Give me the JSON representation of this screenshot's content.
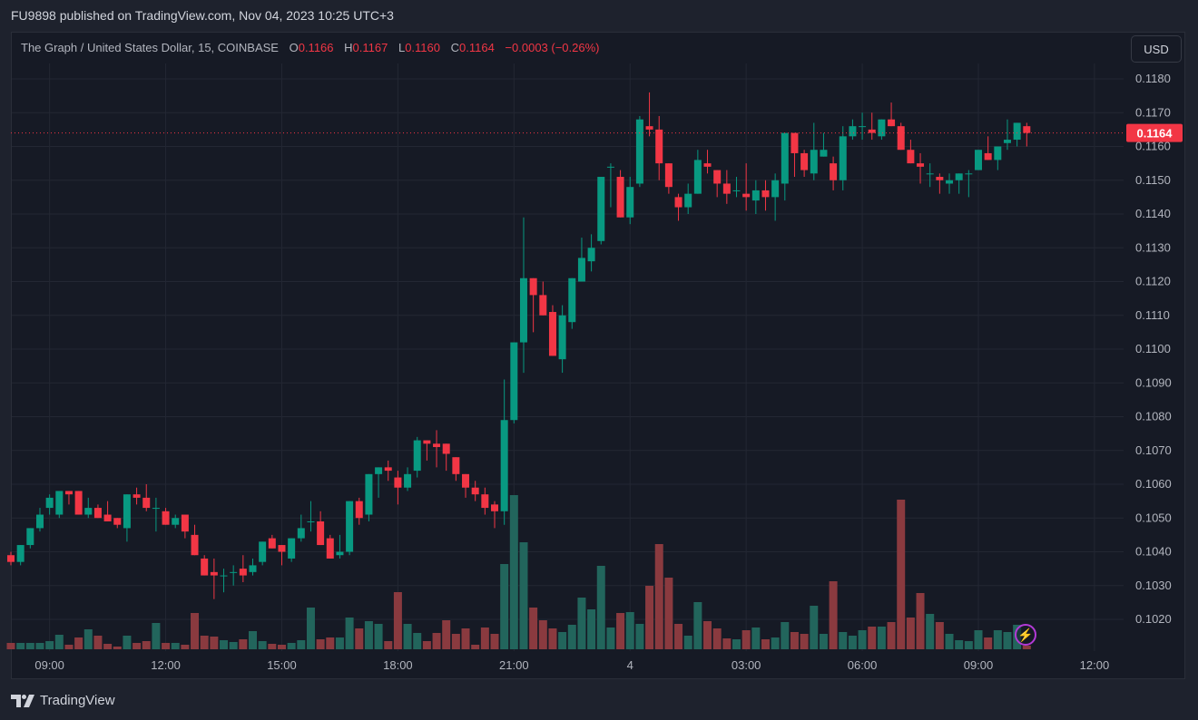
{
  "header": {
    "published": "FU9898 published on TradingView.com, Nov 04, 2023 10:25 UTC+3"
  },
  "legend": {
    "title": "The Graph / United States Dollar, 15, COINBASE",
    "o_label": "O",
    "o": "0.1166",
    "h_label": "H",
    "h": "0.1167",
    "l_label": "L",
    "l": "0.1160",
    "c_label": "C",
    "c": "0.1164",
    "change": "−0.0003 (−0.26%)"
  },
  "currency_button": "USD",
  "current_price_label": "0.1164",
  "branding": {
    "logo_text": "TradingView"
  },
  "icons": {
    "replay": "lightning-icon",
    "logo": "tradingview-logo-icon"
  },
  "colors": {
    "up": "#089981",
    "down": "#f23645",
    "vol_up": "#22655c",
    "vol_down": "#8a3a3f",
    "grid": "#232733",
    "axis_text": "#b2b5be"
  },
  "chart_data": {
    "type": "candlestick",
    "symbol": "GRT/USD",
    "interval_minutes": 15,
    "first_bar_time": "08:00",
    "ylim": [
      0.10135,
      0.11875
    ],
    "current_price": 0.1164,
    "price_ticks": [
      "0.1020",
      "0.1030",
      "0.1040",
      "0.1050",
      "0.1060",
      "0.1070",
      "0.1080",
      "0.1090",
      "0.1100",
      "0.1110",
      "0.1120",
      "0.1130",
      "0.1140",
      "0.1150",
      "0.1160",
      "0.1170",
      "0.1180"
    ],
    "time_ticks": [
      {
        "index": 4,
        "label": "09:00"
      },
      {
        "index": 16,
        "label": "12:00"
      },
      {
        "index": 28,
        "label": "15:00"
      },
      {
        "index": 40,
        "label": "18:00"
      },
      {
        "index": 52,
        "label": "21:00"
      },
      {
        "index": 64,
        "label": "4"
      },
      {
        "index": 76,
        "label": "03:00"
      },
      {
        "index": 88,
        "label": "06:00"
      },
      {
        "index": 100,
        "label": "09:00"
      },
      {
        "index": 112,
        "label": "12:00"
      }
    ],
    "ohlc": [
      [
        0.1039,
        0.104,
        0.1036,
        0.1037
      ],
      [
        0.1037,
        0.1042,
        0.1036,
        0.1042
      ],
      [
        0.1042,
        0.1047,
        0.1041,
        0.1047
      ],
      [
        0.1047,
        0.1053,
        0.1046,
        0.1051
      ],
      [
        0.1053,
        0.1057,
        0.1051,
        0.1056
      ],
      [
        0.1051,
        0.1058,
        0.105,
        0.1058
      ],
      [
        0.1058,
        0.1058,
        0.1054,
        0.1057
      ],
      [
        0.1058,
        0.1058,
        0.1051,
        0.1051
      ],
      [
        0.1051,
        0.1056,
        0.105,
        0.1053
      ],
      [
        0.1053,
        0.1054,
        0.105,
        0.105
      ],
      [
        0.1051,
        0.1055,
        0.1049,
        0.1049
      ],
      [
        0.105,
        0.105,
        0.1047,
        0.1048
      ],
      [
        0.1047,
        0.1057,
        0.1043,
        0.1057
      ],
      [
        0.1057,
        0.1059,
        0.1054,
        0.1056
      ],
      [
        0.1056,
        0.106,
        0.1052,
        0.1053
      ],
      [
        0.1053,
        0.1056,
        0.1046,
        0.1053
      ],
      [
        0.1052,
        0.1053,
        0.1048,
        0.1048
      ],
      [
        0.1048,
        0.1051,
        0.1047,
        0.105
      ],
      [
        0.1051,
        0.1051,
        0.1044,
        0.1046
      ],
      [
        0.1045,
        0.1048,
        0.1039,
        0.1039
      ],
      [
        0.1038,
        0.1039,
        0.1033,
        0.1033
      ],
      [
        0.1034,
        0.1038,
        0.1026,
        0.1033
      ],
      [
        0.1033,
        0.1035,
        0.1028,
        0.1033
      ],
      [
        0.1034,
        0.1036,
        0.103,
        0.1034
      ],
      [
        0.1035,
        0.1039,
        0.1031,
        0.1033
      ],
      [
        0.1034,
        0.1038,
        0.1033,
        0.1036
      ],
      [
        0.1037,
        0.1043,
        0.1036,
        0.1043
      ],
      [
        0.1044,
        0.1045,
        0.1041,
        0.1041
      ],
      [
        0.1042,
        0.1042,
        0.1036,
        0.104
      ],
      [
        0.1038,
        0.1044,
        0.1037,
        0.1044
      ],
      [
        0.1044,
        0.1051,
        0.1043,
        0.1047
      ],
      [
        0.1049,
        0.1055,
        0.1046,
        0.1049
      ],
      [
        0.1049,
        0.1052,
        0.1042,
        0.1042
      ],
      [
        0.1044,
        0.1045,
        0.1038,
        0.1038
      ],
      [
        0.1039,
        0.1045,
        0.1038,
        0.104
      ],
      [
        0.104,
        0.1055,
        0.1039,
        0.1055
      ],
      [
        0.1055,
        0.1056,
        0.1048,
        0.105
      ],
      [
        0.1051,
        0.1063,
        0.1049,
        0.1063
      ],
      [
        0.1063,
        0.1065,
        0.1056,
        0.1065
      ],
      [
        0.1065,
        0.1067,
        0.1061,
        0.1064
      ],
      [
        0.1062,
        0.1064,
        0.1054,
        0.1059
      ],
      [
        0.1059,
        0.1065,
        0.1058,
        0.1063
      ],
      [
        0.1064,
        0.1074,
        0.1062,
        0.1073
      ],
      [
        0.1073,
        0.1073,
        0.1067,
        0.1072
      ],
      [
        0.1072,
        0.1076,
        0.1065,
        0.1071
      ],
      [
        0.1072,
        0.1072,
        0.1064,
        0.1069
      ],
      [
        0.1068,
        0.1068,
        0.1061,
        0.1063
      ],
      [
        0.1063,
        0.1063,
        0.1056,
        0.1059
      ],
      [
        0.1059,
        0.1061,
        0.1055,
        0.1057
      ],
      [
        0.1057,
        0.1059,
        0.1051,
        0.1053
      ],
      [
        0.1054,
        0.1055,
        0.1047,
        0.1052
      ],
      [
        0.1052,
        0.1091,
        0.1048,
        0.1079
      ],
      [
        0.1079,
        0.1102,
        0.1078,
        0.1102
      ],
      [
        0.1102,
        0.1139,
        0.1093,
        0.1121
      ],
      [
        0.1121,
        0.1121,
        0.1105,
        0.1116
      ],
      [
        0.1116,
        0.112,
        0.111,
        0.111
      ],
      [
        0.1111,
        0.1113,
        0.1098,
        0.1098
      ],
      [
        0.1097,
        0.1113,
        0.1093,
        0.111
      ],
      [
        0.1108,
        0.1121,
        0.1106,
        0.1121
      ],
      [
        0.112,
        0.1133,
        0.112,
        0.1127
      ],
      [
        0.1126,
        0.1134,
        0.1123,
        0.113
      ],
      [
        0.1132,
        0.1151,
        0.1131,
        0.1151
      ],
      [
        0.1154,
        0.1155,
        0.1142,
        0.1154
      ],
      [
        0.1151,
        0.1153,
        0.1139,
        0.1139
      ],
      [
        0.1139,
        0.1151,
        0.1137,
        0.1148
      ],
      [
        0.1149,
        0.1169,
        0.1148,
        0.1168
      ],
      [
        0.1166,
        0.1176,
        0.1163,
        0.1165
      ],
      [
        0.1165,
        0.1169,
        0.115,
        0.1155
      ],
      [
        0.1155,
        0.1155,
        0.1146,
        0.1148
      ],
      [
        0.1145,
        0.1146,
        0.1138,
        0.1142
      ],
      [
        0.1142,
        0.1149,
        0.114,
        0.1146
      ],
      [
        0.1146,
        0.1159,
        0.1146,
        0.1156
      ],
      [
        0.1155,
        0.1159,
        0.1152,
        0.1154
      ],
      [
        0.1153,
        0.1153,
        0.1145,
        0.1149
      ],
      [
        0.1149,
        0.1153,
        0.1143,
        0.1146
      ],
      [
        0.1147,
        0.1151,
        0.1145,
        0.1147
      ],
      [
        0.1146,
        0.1155,
        0.1141,
        0.1145
      ],
      [
        0.1144,
        0.115,
        0.114,
        0.1147
      ],
      [
        0.1147,
        0.115,
        0.1141,
        0.1145
      ],
      [
        0.1145,
        0.1152,
        0.1138,
        0.115
      ],
      [
        0.1149,
        0.1164,
        0.1144,
        0.1164
      ],
      [
        0.1164,
        0.1164,
        0.1151,
        0.1158
      ],
      [
        0.1158,
        0.1159,
        0.1151,
        0.1153
      ],
      [
        0.1152,
        0.1167,
        0.115,
        0.1159
      ],
      [
        0.1157,
        0.1164,
        0.1157,
        0.1159
      ],
      [
        0.1155,
        0.1157,
        0.1147,
        0.115
      ],
      [
        0.115,
        0.1166,
        0.1147,
        0.1163
      ],
      [
        0.1163,
        0.1168,
        0.1162,
        0.1166
      ],
      [
        0.1166,
        0.117,
        0.1162,
        0.1166
      ],
      [
        0.1165,
        0.117,
        0.1162,
        0.1164
      ],
      [
        0.1163,
        0.1168,
        0.1162,
        0.1168
      ],
      [
        0.1168,
        0.1173,
        0.1166,
        0.1166
      ],
      [
        0.1166,
        0.1167,
        0.1159,
        0.1159
      ],
      [
        0.1159,
        0.1162,
        0.1155,
        0.1155
      ],
      [
        0.1155,
        0.1158,
        0.1149,
        0.1154
      ],
      [
        0.1152,
        0.1155,
        0.1148,
        0.1152
      ],
      [
        0.1151,
        0.1152,
        0.1146,
        0.115
      ],
      [
        0.1149,
        0.1152,
        0.1146,
        0.115
      ],
      [
        0.115,
        0.1152,
        0.1146,
        0.1152
      ],
      [
        0.1152,
        0.1153,
        0.1145,
        0.1152
      ],
      [
        0.1153,
        0.1159,
        0.1153,
        0.1159
      ],
      [
        0.1158,
        0.1163,
        0.1156,
        0.1156
      ],
      [
        0.1156,
        0.116,
        0.1153,
        0.116
      ],
      [
        0.1161,
        0.1168,
        0.1159,
        0.1162
      ],
      [
        0.1162,
        0.1167,
        0.116,
        0.1167
      ],
      [
        0.1166,
        0.1167,
        0.116,
        0.1164
      ]
    ],
    "volume": [
      7,
      7,
      7,
      7,
      9,
      16,
      5,
      13,
      22,
      15,
      6,
      3,
      15,
      7,
      9,
      29,
      7,
      7,
      5,
      40,
      15,
      14,
      10,
      8,
      11,
      20,
      9,
      6,
      5,
      7,
      10,
      46,
      11,
      13,
      13,
      35,
      23,
      31,
      28,
      9,
      63,
      28,
      18,
      9,
      18,
      32,
      17,
      23,
      5,
      24,
      17,
      94,
      170,
      118,
      46,
      32,
      23,
      19,
      27,
      57,
      44,
      92,
      24,
      40,
      41,
      28,
      70,
      116,
      79,
      28,
      15,
      52,
      31,
      23,
      12,
      11,
      21,
      24,
      11,
      13,
      30,
      19,
      17,
      48,
      17,
      75,
      19,
      15,
      21,
      25,
      25,
      30,
      165,
      35,
      62,
      39,
      30,
      17,
      10,
      9,
      21,
      13,
      21,
      19,
      27,
      4
    ]
  }
}
